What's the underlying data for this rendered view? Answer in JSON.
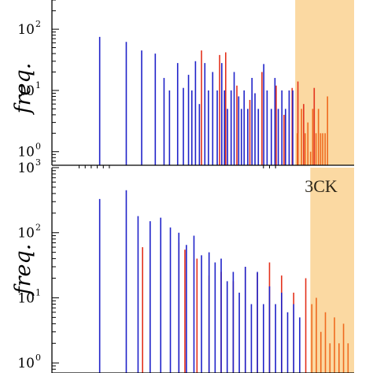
{
  "colors": {
    "shade": "#fbd9a2",
    "red_series": "#e3311c",
    "blue_series": "#1f22c9",
    "orange_series": "#ef6a1f",
    "axis": "#000000"
  },
  "chart_data": [
    {
      "type": "bar",
      "panel": "top",
      "ylabel": "freq.",
      "yscale": "log",
      "ylim": [
        0.6,
        300
      ],
      "yticks": [
        {
          "base": "10",
          "exp": "0",
          "value": 1
        },
        {
          "base": "10",
          "exp": "1",
          "value": 10
        },
        {
          "base": "10",
          "exp": "2",
          "value": 100
        }
      ],
      "shaded_region": {
        "x_from": 0.805,
        "x_to": 1.0,
        "color": "#fbd9a2"
      },
      "annotation": "",
      "series": [
        {
          "color": "#e3311c",
          "x": [
            0.495,
            0.555,
            0.575,
            0.612,
            0.655,
            0.695,
            0.742,
            0.768,
            0.795,
            0.814,
            0.833,
            0.868
          ],
          "values": [
            45,
            38,
            42,
            12,
            7,
            20,
            12,
            4,
            11,
            14,
            6,
            11
          ]
        },
        {
          "color": "#1f22c9",
          "x": [
            0.158,
            0.246,
            0.297,
            0.342,
            0.371,
            0.389,
            0.416,
            0.435,
            0.452,
            0.463,
            0.475,
            0.488,
            0.506,
            0.518,
            0.532,
            0.547,
            0.562,
            0.571,
            0.581,
            0.593,
            0.603,
            0.618,
            0.627,
            0.636,
            0.648,
            0.662,
            0.672,
            0.683,
            0.701,
            0.712,
            0.726,
            0.738,
            0.749,
            0.761,
            0.773,
            0.785,
            0.797
          ],
          "values": [
            75,
            62,
            45,
            40,
            16,
            10,
            28,
            11,
            18,
            10,
            30,
            6,
            28,
            10,
            20,
            10,
            28,
            10,
            5,
            10,
            20,
            8,
            5,
            10,
            5,
            16,
            9,
            5,
            27,
            10,
            5,
            16,
            5,
            10,
            5,
            10,
            10
          ]
        },
        {
          "color": "#ef6a1f",
          "x": [
            0.812,
            0.826,
            0.838,
            0.847,
            0.856,
            0.863,
            0.874,
            0.882,
            0.889,
            0.896,
            0.904,
            0.912
          ],
          "values": [
            2,
            5,
            2,
            3,
            1,
            5,
            2,
            5,
            2,
            2,
            2,
            8
          ]
        }
      ]
    },
    {
      "type": "bar",
      "panel": "bottom",
      "ylabel": "freq.",
      "yscale": "log",
      "ylim": [
        0.7,
        1000
      ],
      "yticks": [
        {
          "base": "10",
          "exp": "0",
          "value": 1
        },
        {
          "base": "10",
          "exp": "1",
          "value": 10
        },
        {
          "base": "10",
          "exp": "2",
          "value": 100
        },
        {
          "base": "10",
          "exp": "3",
          "value": 1000
        }
      ],
      "shaded_region": {
        "x_from": 0.855,
        "x_to": 1.0,
        "color": "#fbd9a2"
      },
      "annotation": "3CK",
      "series": [
        {
          "color": "#e3311c",
          "x": [
            0.3,
            0.42,
            0.44,
            0.48,
            0.52,
            0.56,
            0.6,
            0.64,
            0.68,
            0.72,
            0.76,
            0.8,
            0.84
          ],
          "values": [
            60,
            70,
            55,
            40,
            22,
            25,
            18,
            30,
            24,
            35,
            22,
            12,
            20
          ]
        },
        {
          "color": "#1f22c9",
          "x": [
            0.158,
            0.246,
            0.285,
            0.325,
            0.36,
            0.392,
            0.42,
            0.445,
            0.47,
            0.495,
            0.52,
            0.54,
            0.56,
            0.58,
            0.6,
            0.62,
            0.64,
            0.66,
            0.68,
            0.7,
            0.72,
            0.74,
            0.76,
            0.78,
            0.8,
            0.82
          ],
          "values": [
            330,
            450,
            180,
            150,
            170,
            120,
            100,
            65,
            90,
            45,
            50,
            35,
            40,
            18,
            25,
            12,
            30,
            8,
            25,
            8,
            15,
            8,
            12,
            6,
            8,
            5
          ]
        },
        {
          "color": "#ef6a1f",
          "x": [
            0.86,
            0.875,
            0.89,
            0.905,
            0.92,
            0.935,
            0.95,
            0.965,
            0.98
          ],
          "values": [
            8,
            10,
            3,
            6,
            2,
            5,
            2,
            4,
            2
          ]
        }
      ]
    }
  ]
}
